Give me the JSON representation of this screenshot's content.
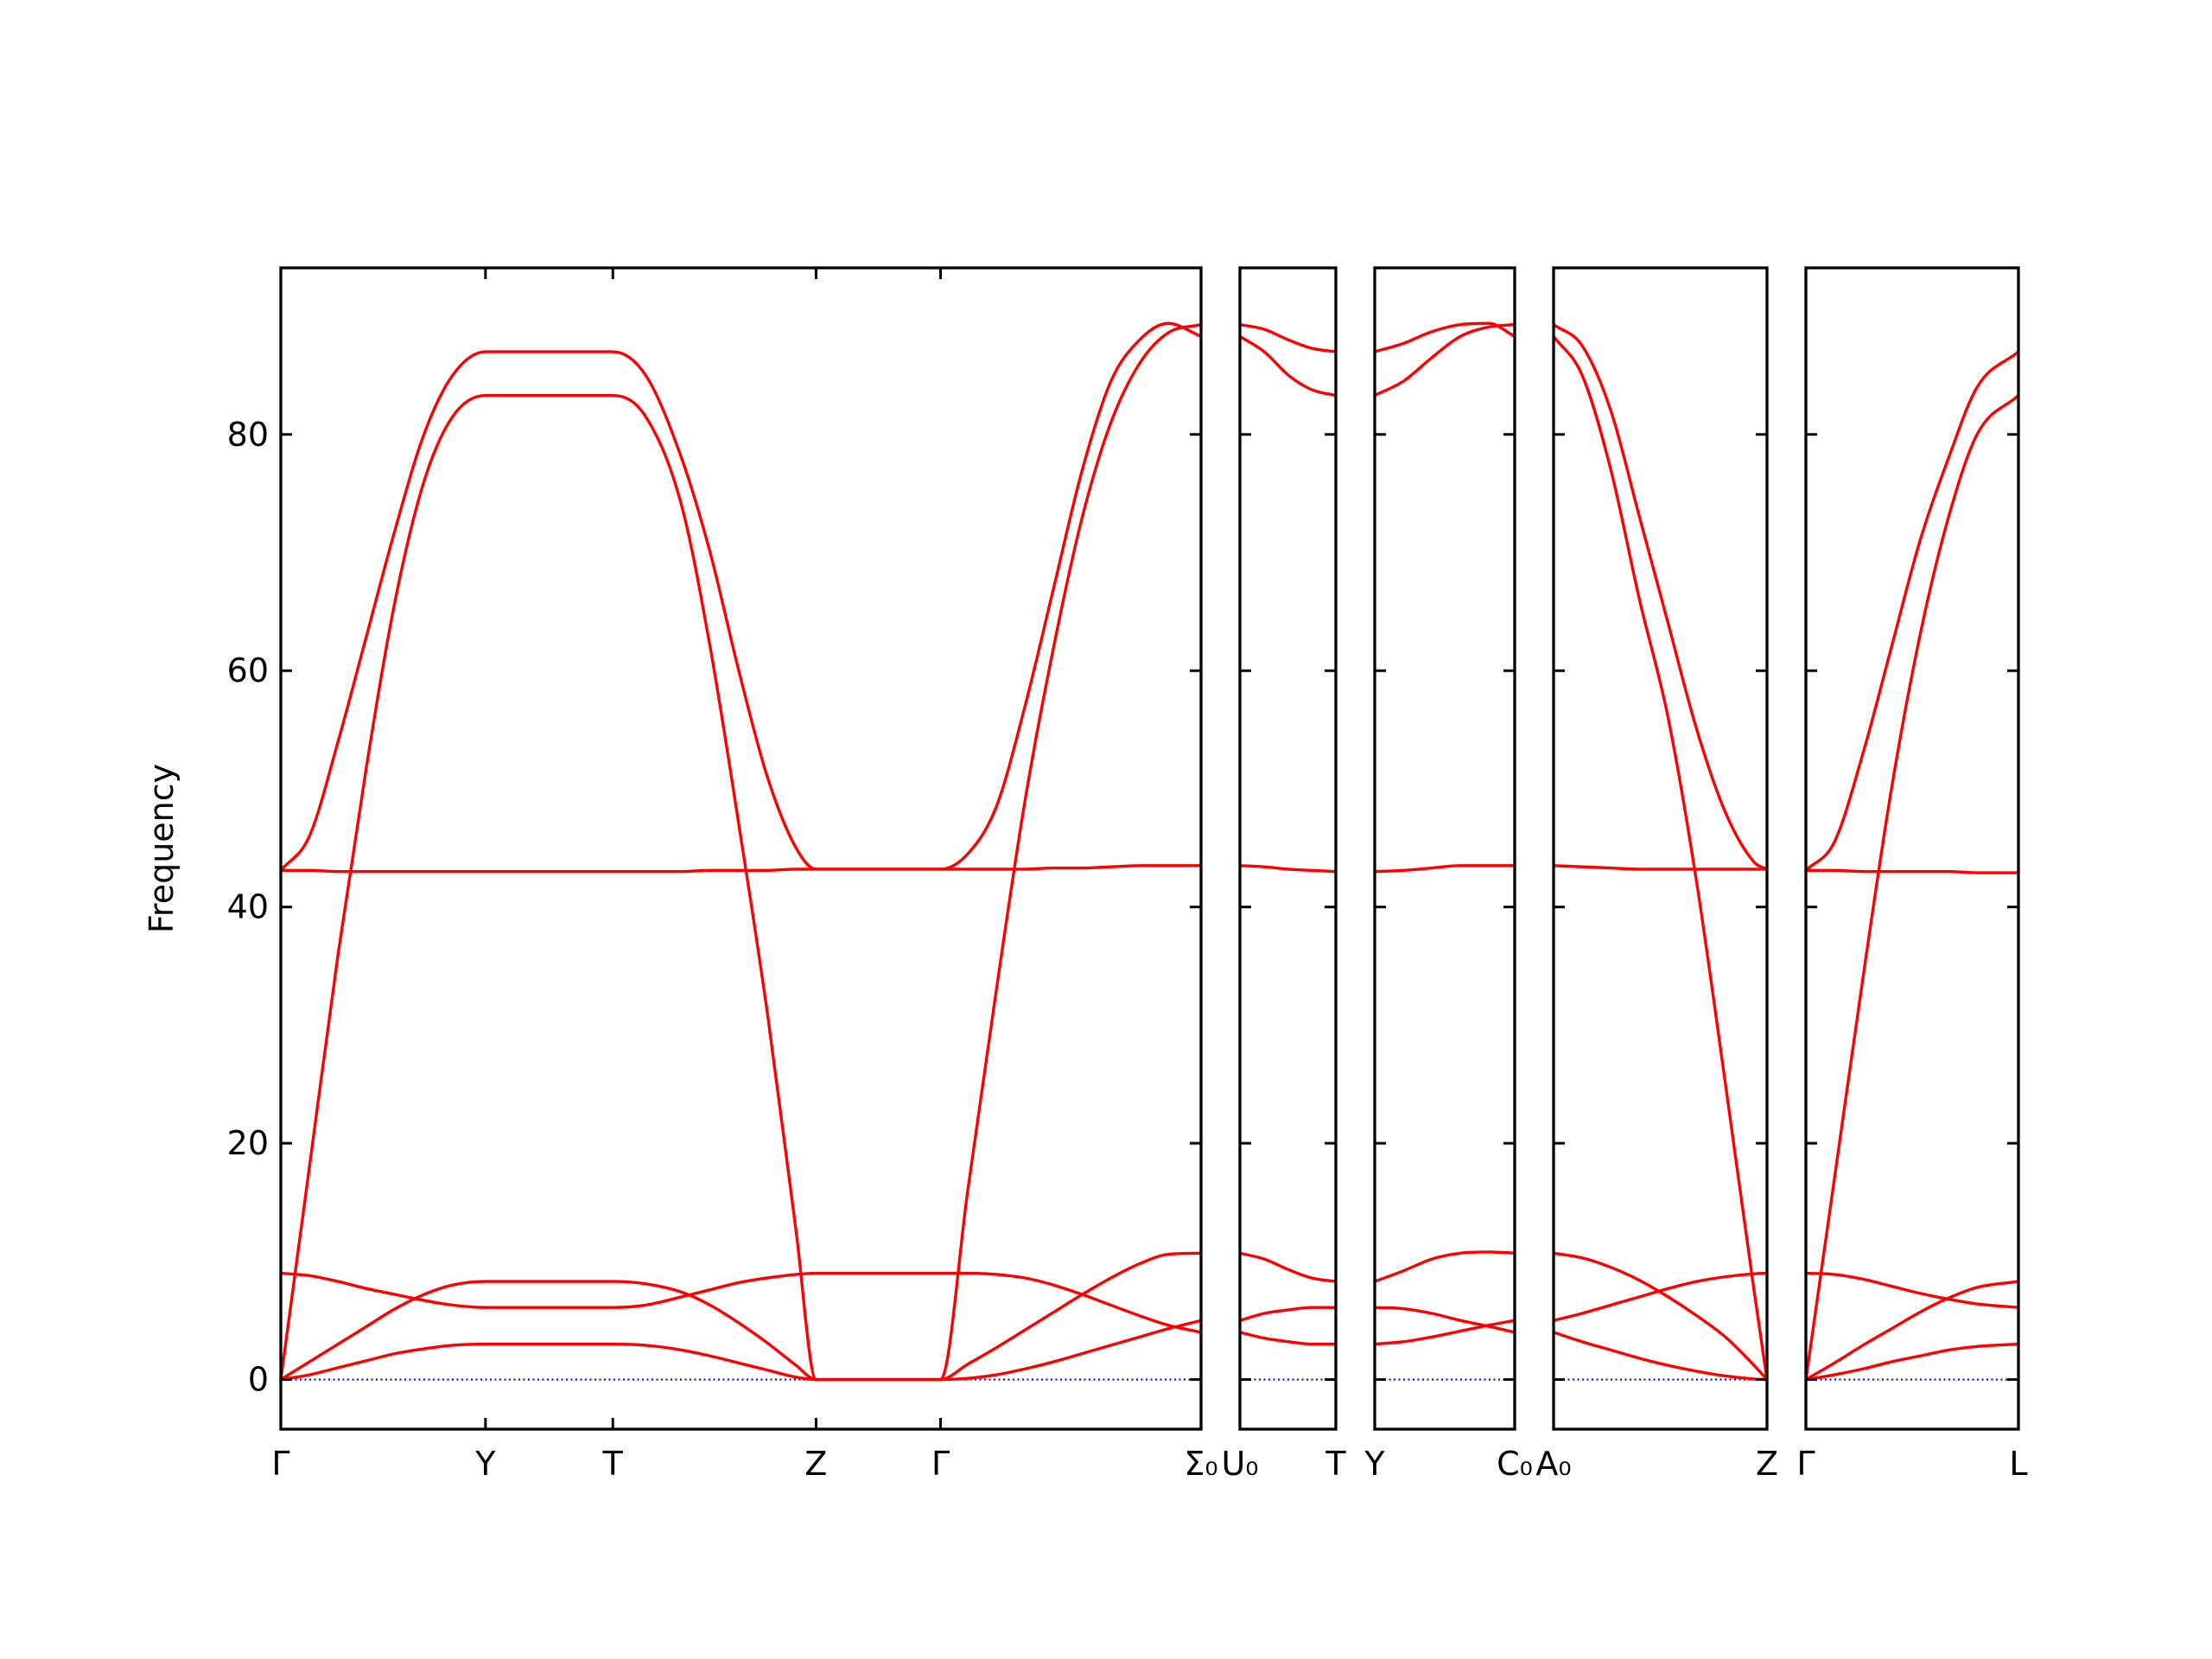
{
  "chart_data": [
    {
      "type": "line",
      "ylabel": "Frequency",
      "ylim": [
        -4.2,
        94.1
      ],
      "yticks": [
        0,
        20,
        40,
        60,
        80
      ],
      "xlim": [
        0,
        6.43
      ],
      "xticks": [
        {
          "value": 0,
          "label": "Γ"
        },
        {
          "value": 1.43,
          "label": "Y"
        },
        {
          "value": 2.32,
          "label": "T"
        },
        {
          "value": 3.74,
          "label": "Z"
        },
        {
          "value": 4.61,
          "label": "Γ"
        },
        {
          "value": 6.43,
          "label": "Σ₀"
        }
      ],
      "hlines": [
        {
          "y": 0,
          "color": "#0000ff"
        }
      ],
      "x": [
        0,
        0.2,
        0.4,
        0.6,
        0.8,
        1.0,
        1.2,
        1.43,
        1.9,
        2.32,
        2.55,
        2.8,
        3.0,
        3.2,
        3.4,
        3.6,
        3.74,
        4.2,
        4.61,
        4.8,
        5.0,
        5.2,
        5.4,
        5.6,
        5.8,
        6.0,
        6.2,
        6.43
      ],
      "series": [
        {
          "color": "#ff0000",
          "values": [
            0,
            0.4,
            1.0,
            1.6,
            2.2,
            2.6,
            2.9,
            3.0,
            3.0,
            3.0,
            2.9,
            2.5,
            2.0,
            1.4,
            0.8,
            0.2,
            0,
            0,
            0,
            0.1,
            0.4,
            0.9,
            1.5,
            2.2,
            2.9,
            3.6,
            4.3,
            5.0
          ]
        },
        {
          "color": "#ff0000",
          "values": [
            0,
            1.5,
            3.0,
            4.5,
            6.0,
            7.2,
            8.0,
            8.3,
            8.3,
            8.3,
            8.1,
            7.4,
            6.3,
            4.8,
            3.1,
            1.2,
            0,
            0,
            0,
            1.3,
            2.7,
            4.2,
            5.7,
            7.2,
            8.6,
            9.8,
            10.6,
            10.7
          ]
        },
        {
          "color": "#ff0000",
          "values": [
            9.0,
            8.8,
            8.3,
            7.7,
            7.2,
            6.7,
            6.3,
            6.1,
            6.1,
            6.1,
            6.3,
            7.0,
            7.6,
            8.2,
            8.6,
            8.9,
            9.0,
            9.0,
            9.0,
            9.0,
            8.9,
            8.6,
            8.0,
            7.2,
            6.3,
            5.4,
            4.6,
            4.0
          ]
        },
        {
          "color": "#ff0000",
          "values": [
            0,
            18,
            36,
            52,
            66,
            76,
            81.5,
            83.3,
            83.3,
            83.3,
            81.5,
            74,
            62,
            47,
            31,
            12.6,
            0,
            0,
            0,
            16,
            33,
            49,
            62,
            73,
            81,
            86,
            88.6,
            89.3
          ]
        },
        {
          "color": "#ff0000",
          "values": [
            43.1,
            43.1,
            43.0,
            43.0,
            43.0,
            43.0,
            43.0,
            43.0,
            43.0,
            43.0,
            43.0,
            43.0,
            43.1,
            43.1,
            43.1,
            43.2,
            43.2,
            43.2,
            43.2,
            43.2,
            43.2,
            43.2,
            43.3,
            43.3,
            43.4,
            43.5,
            43.5,
            43.5
          ]
        },
        {
          "color": "#ff0000",
          "values": [
            43.1,
            46,
            54,
            63,
            72,
            80,
            85,
            87,
            87,
            87,
            85,
            78,
            70,
            60,
            51,
            45,
            43.2,
            43.2,
            43.2,
            44.5,
            48.5,
            57,
            67,
            77,
            84.5,
            88,
            89.4,
            88.3
          ]
        }
      ]
    },
    {
      "type": "line",
      "xlim": [
        0,
        0.67
      ],
      "xticks": [
        {
          "value": 0,
          "label": "U₀"
        },
        {
          "value": 0.67,
          "label": "T"
        }
      ],
      "hlines": [
        {
          "y": 0,
          "color": "#0000ff"
        }
      ],
      "x": [
        0,
        0.17,
        0.34,
        0.5,
        0.67
      ],
      "series": [
        {
          "color": "#ff0000",
          "values": [
            5.0,
            5.6,
            5.9,
            6.1,
            6.1
          ]
        },
        {
          "color": "#ff0000",
          "values": [
            10.7,
            10.2,
            9.3,
            8.6,
            8.3
          ]
        },
        {
          "color": "#ff0000",
          "values": [
            4.0,
            3.5,
            3.2,
            3.0,
            3.0
          ]
        },
        {
          "color": "#ff0000",
          "values": [
            89.3,
            88.9,
            88,
            87.3,
            87.0
          ]
        },
        {
          "color": "#ff0000",
          "values": [
            43.5,
            43.4,
            43.2,
            43.1,
            43.0
          ]
        },
        {
          "color": "#ff0000",
          "values": [
            88.3,
            87,
            85,
            83.8,
            83.3
          ]
        }
      ]
    },
    {
      "type": "line",
      "xlim": [
        0,
        0.98
      ],
      "xticks": [
        {
          "value": 0,
          "label": "Y"
        },
        {
          "value": 0.98,
          "label": "C₀"
        }
      ],
      "hlines": [
        {
          "y": 0,
          "color": "#0000ff"
        }
      ],
      "x": [
        0,
        0.2,
        0.4,
        0.6,
        0.8,
        0.98
      ],
      "series": [
        {
          "color": "#ff0000",
          "values": [
            3.0,
            3.2,
            3.6,
            4.1,
            4.6,
            5.0
          ]
        },
        {
          "color": "#ff0000",
          "values": [
            8.3,
            9.2,
            10.2,
            10.7,
            10.8,
            10.7
          ]
        },
        {
          "color": "#ff0000",
          "values": [
            6.1,
            6.0,
            5.6,
            5.0,
            4.5,
            4.0
          ]
        },
        {
          "color": "#ff0000",
          "values": [
            83.3,
            84.5,
            86.5,
            88.3,
            89.1,
            89.3
          ]
        },
        {
          "color": "#ff0000",
          "values": [
            43.0,
            43.1,
            43.3,
            43.5,
            43.5,
            43.5
          ]
        },
        {
          "color": "#ff0000",
          "values": [
            87,
            87.7,
            88.7,
            89.3,
            89.4,
            88.3
          ]
        }
      ]
    },
    {
      "type": "line",
      "xlim": [
        0,
        1.49
      ],
      "xticks": [
        {
          "value": 0,
          "label": "A₀"
        },
        {
          "value": 1.49,
          "label": "Z"
        }
      ],
      "hlines": [
        {
          "y": 0,
          "color": "#0000ff"
        }
      ],
      "x": [
        0,
        0.2,
        0.4,
        0.6,
        0.8,
        1.0,
        1.2,
        1.4,
        1.49
      ],
      "series": [
        {
          "color": "#ff0000",
          "values": [
            5.0,
            5.6,
            6.3,
            7.0,
            7.7,
            8.3,
            8.7,
            8.95,
            9.0
          ]
        },
        {
          "color": "#ff0000",
          "values": [
            10.7,
            10.3,
            9.5,
            8.4,
            7.0,
            5.4,
            3.6,
            1.2,
            0
          ]
        },
        {
          "color": "#ff0000",
          "values": [
            4.0,
            3.2,
            2.5,
            1.8,
            1.2,
            0.7,
            0.3,
            0.05,
            0
          ]
        },
        {
          "color": "#ff0000",
          "values": [
            88.3,
            85,
            77,
            66,
            56,
            42,
            25,
            7.5,
            0
          ]
        },
        {
          "color": "#ff0000",
          "values": [
            43.5,
            43.4,
            43.3,
            43.2,
            43.2,
            43.2,
            43.2,
            43.2,
            43.2
          ]
        },
        {
          "color": "#ff0000",
          "values": [
            89.3,
            87.5,
            82,
            73,
            64,
            55,
            48,
            43.8,
            43.2
          ]
        }
      ]
    },
    {
      "type": "line",
      "xlim": [
        0,
        1.49
      ],
      "xticks": [
        {
          "value": 0,
          "label": "Γ"
        },
        {
          "value": 1.49,
          "label": "L"
        }
      ],
      "hlines": [
        {
          "y": 0,
          "color": "#0000ff"
        }
      ],
      "x": [
        0,
        0.2,
        0.4,
        0.6,
        0.8,
        1.0,
        1.2,
        1.49
      ],
      "series": [
        {
          "color": "#ff0000",
          "values": [
            0,
            0.4,
            0.9,
            1.5,
            2.0,
            2.5,
            2.8,
            3.0
          ]
        },
        {
          "color": "#ff0000",
          "values": [
            0,
            1.4,
            2.9,
            4.3,
            5.7,
            6.9,
            7.8,
            8.3
          ]
        },
        {
          "color": "#ff0000",
          "values": [
            9.0,
            8.9,
            8.5,
            7.9,
            7.3,
            6.8,
            6.4,
            6.1
          ]
        },
        {
          "color": "#ff0000",
          "values": [
            0,
            17,
            34,
            50,
            63,
            73,
            80,
            83.3
          ]
        },
        {
          "color": "#ff0000",
          "values": [
            43.1,
            43.1,
            43.0,
            43.0,
            43.0,
            43.0,
            42.9,
            42.9
          ]
        },
        {
          "color": "#ff0000",
          "values": [
            43.1,
            45.5,
            53,
            62,
            71,
            78,
            84,
            87
          ]
        }
      ]
    }
  ]
}
